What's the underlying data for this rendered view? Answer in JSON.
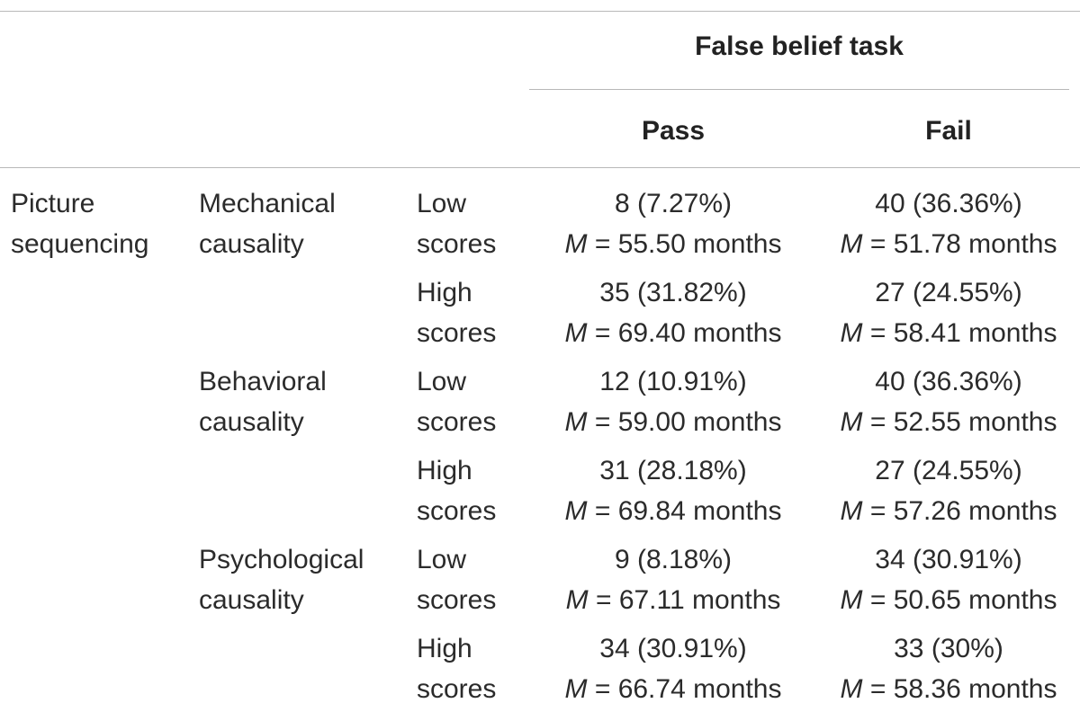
{
  "header": {
    "group_title": "False belief task",
    "pass_label": "Pass",
    "fail_label": "Fail"
  },
  "row_group": {
    "line1": "Picture",
    "line2": "sequencing"
  },
  "mean_symbol": "M",
  "rows": [
    {
      "category_line1": "Mechanical",
      "category_line2": "causality",
      "score_line1": "Low",
      "score_line2": "scores",
      "pass_count": "8 (7.27%)",
      "pass_mean": " = 55.50 months",
      "fail_count": "40 (36.36%)",
      "fail_mean": " = 51.78 months"
    },
    {
      "category_line1": "",
      "category_line2": "",
      "score_line1": "High",
      "score_line2": "scores",
      "pass_count": "35 (31.82%)",
      "pass_mean": " = 69.40 months",
      "fail_count": "27 (24.55%)",
      "fail_mean": " = 58.41 months"
    },
    {
      "category_line1": "Behavioral",
      "category_line2": "causality",
      "score_line1": "Low",
      "score_line2": "scores",
      "pass_count": "12 (10.91%)",
      "pass_mean": " = 59.00 months",
      "fail_count": "40 (36.36%)",
      "fail_mean": " = 52.55 months"
    },
    {
      "category_line1": "",
      "category_line2": "",
      "score_line1": "High",
      "score_line2": "scores",
      "pass_count": "31 (28.18%)",
      "pass_mean": " = 69.84 months",
      "fail_count": "27 (24.55%)",
      "fail_mean": " = 57.26 months"
    },
    {
      "category_line1": "Psychological",
      "category_line2": "causality",
      "score_line1": "Low",
      "score_line2": "scores",
      "pass_count": "9 (8.18%)",
      "pass_mean": " = 67.11 months",
      "fail_count": "34 (30.91%)",
      "fail_mean": " = 50.65 months"
    },
    {
      "category_line1": "",
      "category_line2": "",
      "score_line1": "High",
      "score_line2": "scores",
      "pass_count": "34 (30.91%)",
      "pass_mean": " = 66.74 months",
      "fail_count": "33 (30%)",
      "fail_mean": " = 58.36 months"
    }
  ]
}
